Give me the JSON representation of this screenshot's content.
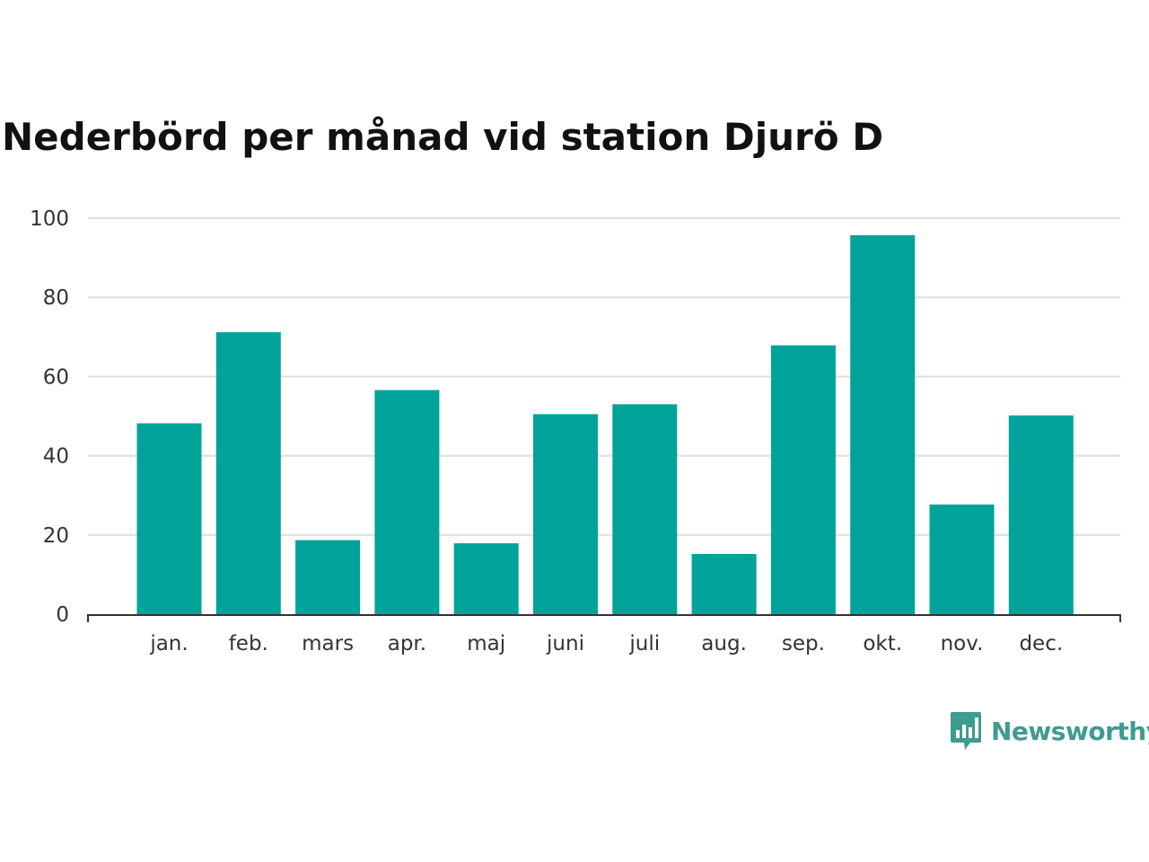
{
  "chart_data": {
    "type": "bar",
    "title": "Nederbörd per månad vid station Djurö D",
    "xlabel": "",
    "ylabel": "",
    "categories": [
      "jan.",
      "feb.",
      "mars",
      "apr.",
      "maj",
      "juni",
      "juli",
      "aug.",
      "sep.",
      "okt.",
      "nov.",
      "dec."
    ],
    "values": [
      48.2,
      71.2,
      18.7,
      56.6,
      17.9,
      50.5,
      53.0,
      15.2,
      67.9,
      95.7,
      27.7,
      50.2
    ],
    "ylim": [
      0,
      100
    ],
    "yticks": [
      0,
      20,
      40,
      60,
      80,
      100
    ],
    "grid": true,
    "bar_color": "#00a39a",
    "grid_color": "#dddddd"
  },
  "brand": {
    "name": "Newsworthy",
    "icon": "newsworthy-logo-icon",
    "color": "#3f9b8f"
  }
}
